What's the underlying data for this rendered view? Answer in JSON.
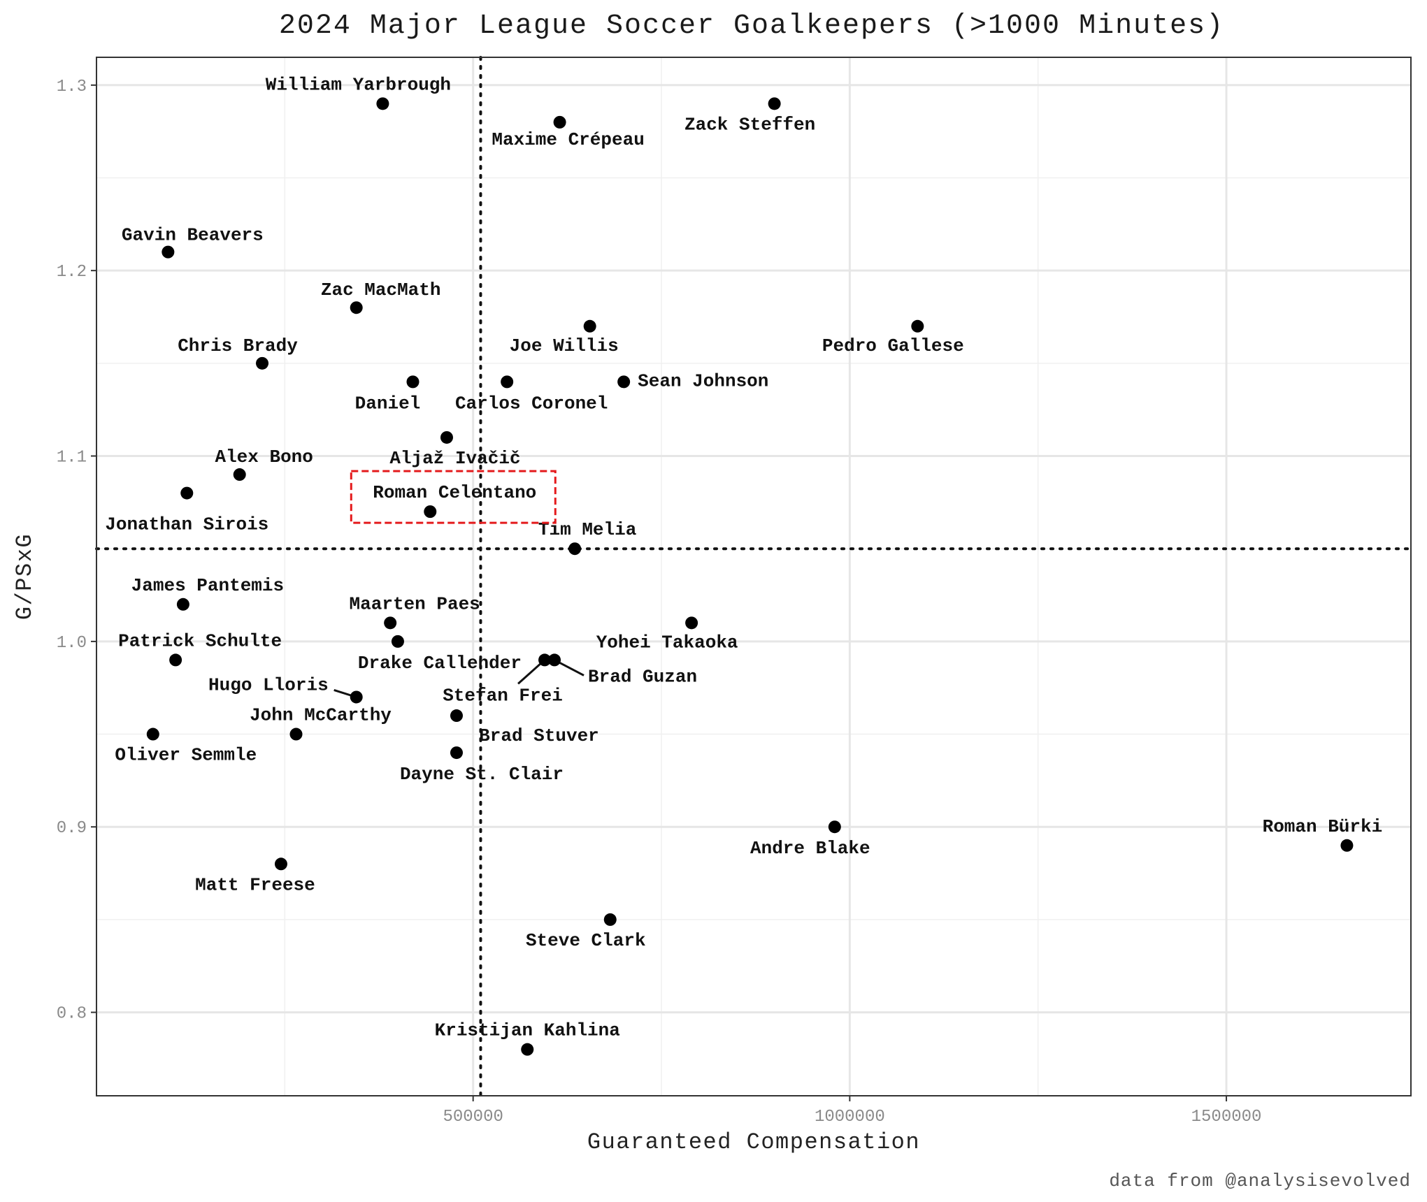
{
  "chart_data": {
    "type": "scatter",
    "title": "2024 Major League Soccer Goalkeepers (>1000 Minutes)",
    "xlabel": "Guaranteed Compensation",
    "ylabel": "G/PSxG",
    "caption": "data from @analysisevolved",
    "xlim": [
      0,
      1745000
    ],
    "ylim": [
      0.755,
      1.315
    ],
    "x_ticks": [
      500000,
      1000000,
      1500000
    ],
    "x_tick_labels": [
      "500000",
      "1000000",
      "1500000"
    ],
    "y_ticks": [
      0.8,
      0.9,
      1.0,
      1.1,
      1.2,
      1.3
    ],
    "y_tick_labels": [
      "0.8",
      "0.9",
      "1.0",
      "1.1",
      "1.2",
      "1.3"
    ],
    "grid": true,
    "reference_lines": {
      "x_mean": 510000,
      "y_mean": 1.05,
      "style": "dotted"
    },
    "highlight": {
      "name": "Roman Celentano",
      "color": "#e41a1c",
      "style": "dashed-box"
    },
    "points": [
      {
        "name": "William Yarbrough",
        "x": 380000,
        "y": 1.29
      },
      {
        "name": "Maxime Crépeau",
        "x": 615000,
        "y": 1.28
      },
      {
        "name": "Zack Steffen",
        "x": 900000,
        "y": 1.29
      },
      {
        "name": "Gavin Beavers",
        "x": 95000,
        "y": 1.21
      },
      {
        "name": "Zac MacMath",
        "x": 345000,
        "y": 1.18
      },
      {
        "name": "Chris Brady",
        "x": 220000,
        "y": 1.15
      },
      {
        "name": "Joe Willis",
        "x": 655000,
        "y": 1.17
      },
      {
        "name": "Pedro Gallese",
        "x": 1090000,
        "y": 1.17
      },
      {
        "name": "Daniel",
        "x": 420000,
        "y": 1.14
      },
      {
        "name": "Carlos Coronel",
        "x": 545000,
        "y": 1.14
      },
      {
        "name": "Sean Johnson",
        "x": 700000,
        "y": 1.14
      },
      {
        "name": "Aljaž Ivačič",
        "x": 465000,
        "y": 1.11
      },
      {
        "name": "Alex Bono",
        "x": 190000,
        "y": 1.09
      },
      {
        "name": "Jonathan Sirois",
        "x": 120000,
        "y": 1.08
      },
      {
        "name": "Roman Celentano",
        "x": 443000,
        "y": 1.07
      },
      {
        "name": "Tim Melia",
        "x": 635000,
        "y": 1.05
      },
      {
        "name": "James Pantemis",
        "x": 115000,
        "y": 1.02
      },
      {
        "name": "Maarten Paes",
        "x": 390000,
        "y": 1.01
      },
      {
        "name": "Yohei Takaoka",
        "x": 790000,
        "y": 1.01
      },
      {
        "name": "Patrick Schulte",
        "x": 105000,
        "y": 0.99
      },
      {
        "name": "Drake Callender",
        "x": 400000,
        "y": 1.0
      },
      {
        "name": "Stefan Frei",
        "x": 595000,
        "y": 0.99
      },
      {
        "name": "Brad Guzan",
        "x": 608000,
        "y": 0.99
      },
      {
        "name": "Hugo Lloris",
        "x": 345000,
        "y": 0.97
      },
      {
        "name": "John McCarthy",
        "x": 265000,
        "y": 0.95
      },
      {
        "name": "Brad Stuver",
        "x": 478000,
        "y": 0.96
      },
      {
        "name": "Oliver Semmle",
        "x": 75000,
        "y": 0.95
      },
      {
        "name": "Dayne St. Clair",
        "x": 478000,
        "y": 0.94
      },
      {
        "name": "Andre Blake",
        "x": 980000,
        "y": 0.9
      },
      {
        "name": "Roman Bürki",
        "x": 1660000,
        "y": 0.89
      },
      {
        "name": "Matt Freese",
        "x": 245000,
        "y": 0.88
      },
      {
        "name": "Steve Clark",
        "x": 682000,
        "y": 0.85
      },
      {
        "name": "Kristijan Kahlina",
        "x": 572000,
        "y": 0.78
      }
    ]
  }
}
